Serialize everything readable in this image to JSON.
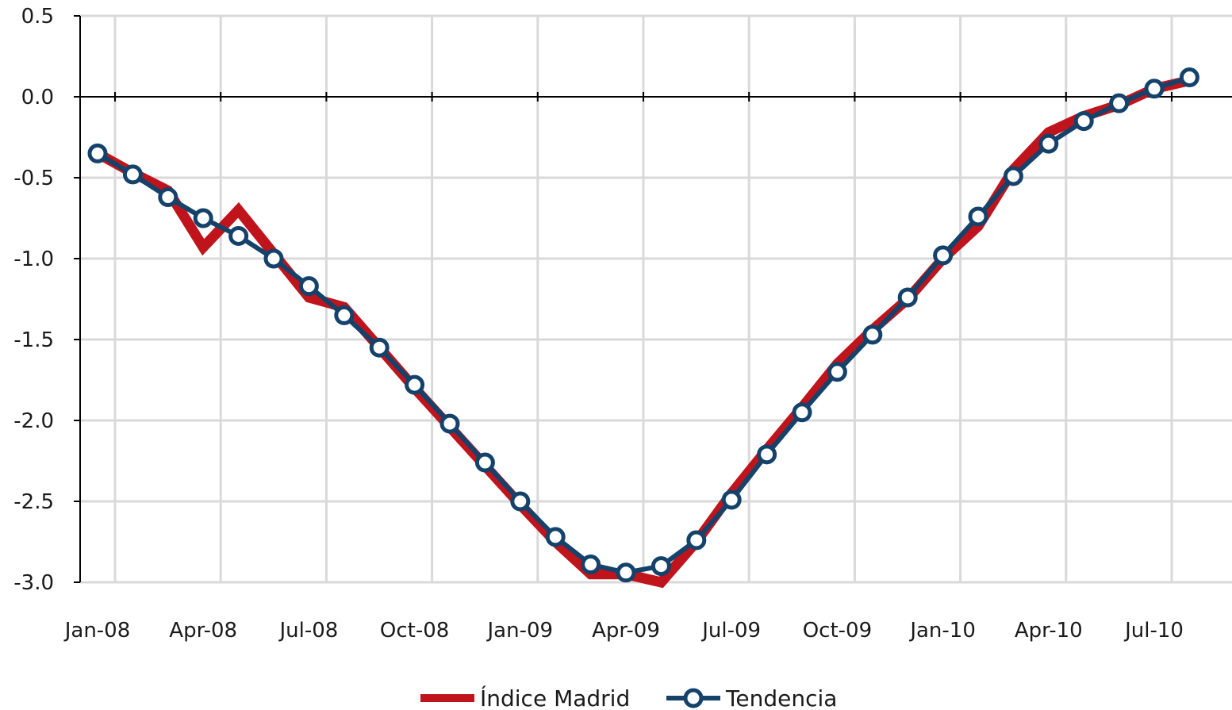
{
  "chart_data": {
    "type": "line",
    "title": "",
    "xlabel": "",
    "ylabel": "",
    "ylim": [
      -3.0,
      0.5
    ],
    "yticks": [
      "0.5",
      "0.0",
      "-0.5",
      "-1.0",
      "-1.5",
      "-2.0",
      "-2.5",
      "-3.0"
    ],
    "x_tick_labels": [
      "Jan-08",
      "Apr-08",
      "Jul-08",
      "Oct-08",
      "Jan-09",
      "Apr-09",
      "Jul-09",
      "Oct-09",
      "Jan-10",
      "Apr-10",
      "Jul-10"
    ],
    "x": [
      "2008-01",
      "2008-02",
      "2008-03",
      "2008-04",
      "2008-05",
      "2008-06",
      "2008-07",
      "2008-08",
      "2008-09",
      "2008-10",
      "2008-11",
      "2008-12",
      "2009-01",
      "2009-02",
      "2009-03",
      "2009-04",
      "2009-05",
      "2009-06",
      "2009-07",
      "2009-08",
      "2009-09",
      "2009-10",
      "2009-11",
      "2009-12",
      "2010-01",
      "2010-02",
      "2010-03",
      "2010-04",
      "2010-05",
      "2010-06",
      "2010-07",
      "2010-08"
    ],
    "grid": true,
    "legend_position": "bottom",
    "series": [
      {
        "name": "Índice Madrid",
        "color": "#c0141c",
        "marker": "none",
        "values": [
          -0.35,
          -0.47,
          -0.58,
          -0.93,
          -0.7,
          -0.97,
          -1.24,
          -1.3,
          -1.55,
          -1.8,
          -2.04,
          -2.28,
          -2.52,
          -2.75,
          -2.95,
          -2.95,
          -3.0,
          -2.75,
          -2.45,
          -2.18,
          -1.92,
          -1.65,
          -1.44,
          -1.25,
          -1.0,
          -0.8,
          -0.45,
          -0.22,
          -0.12,
          -0.05,
          0.05,
          0.1
        ]
      },
      {
        "name": "Tendencia",
        "color": "#14426b",
        "marker": "circle",
        "values": [
          -0.35,
          -0.48,
          -0.62,
          -0.75,
          -0.86,
          -1.0,
          -1.17,
          -1.35,
          -1.55,
          -1.78,
          -2.02,
          -2.26,
          -2.5,
          -2.72,
          -2.89,
          -2.94,
          -2.9,
          -2.74,
          -2.49,
          -2.21,
          -1.95,
          -1.7,
          -1.47,
          -1.24,
          -0.98,
          -0.74,
          -0.49,
          -0.29,
          -0.15,
          -0.04,
          0.05,
          0.12
        ]
      }
    ]
  }
}
